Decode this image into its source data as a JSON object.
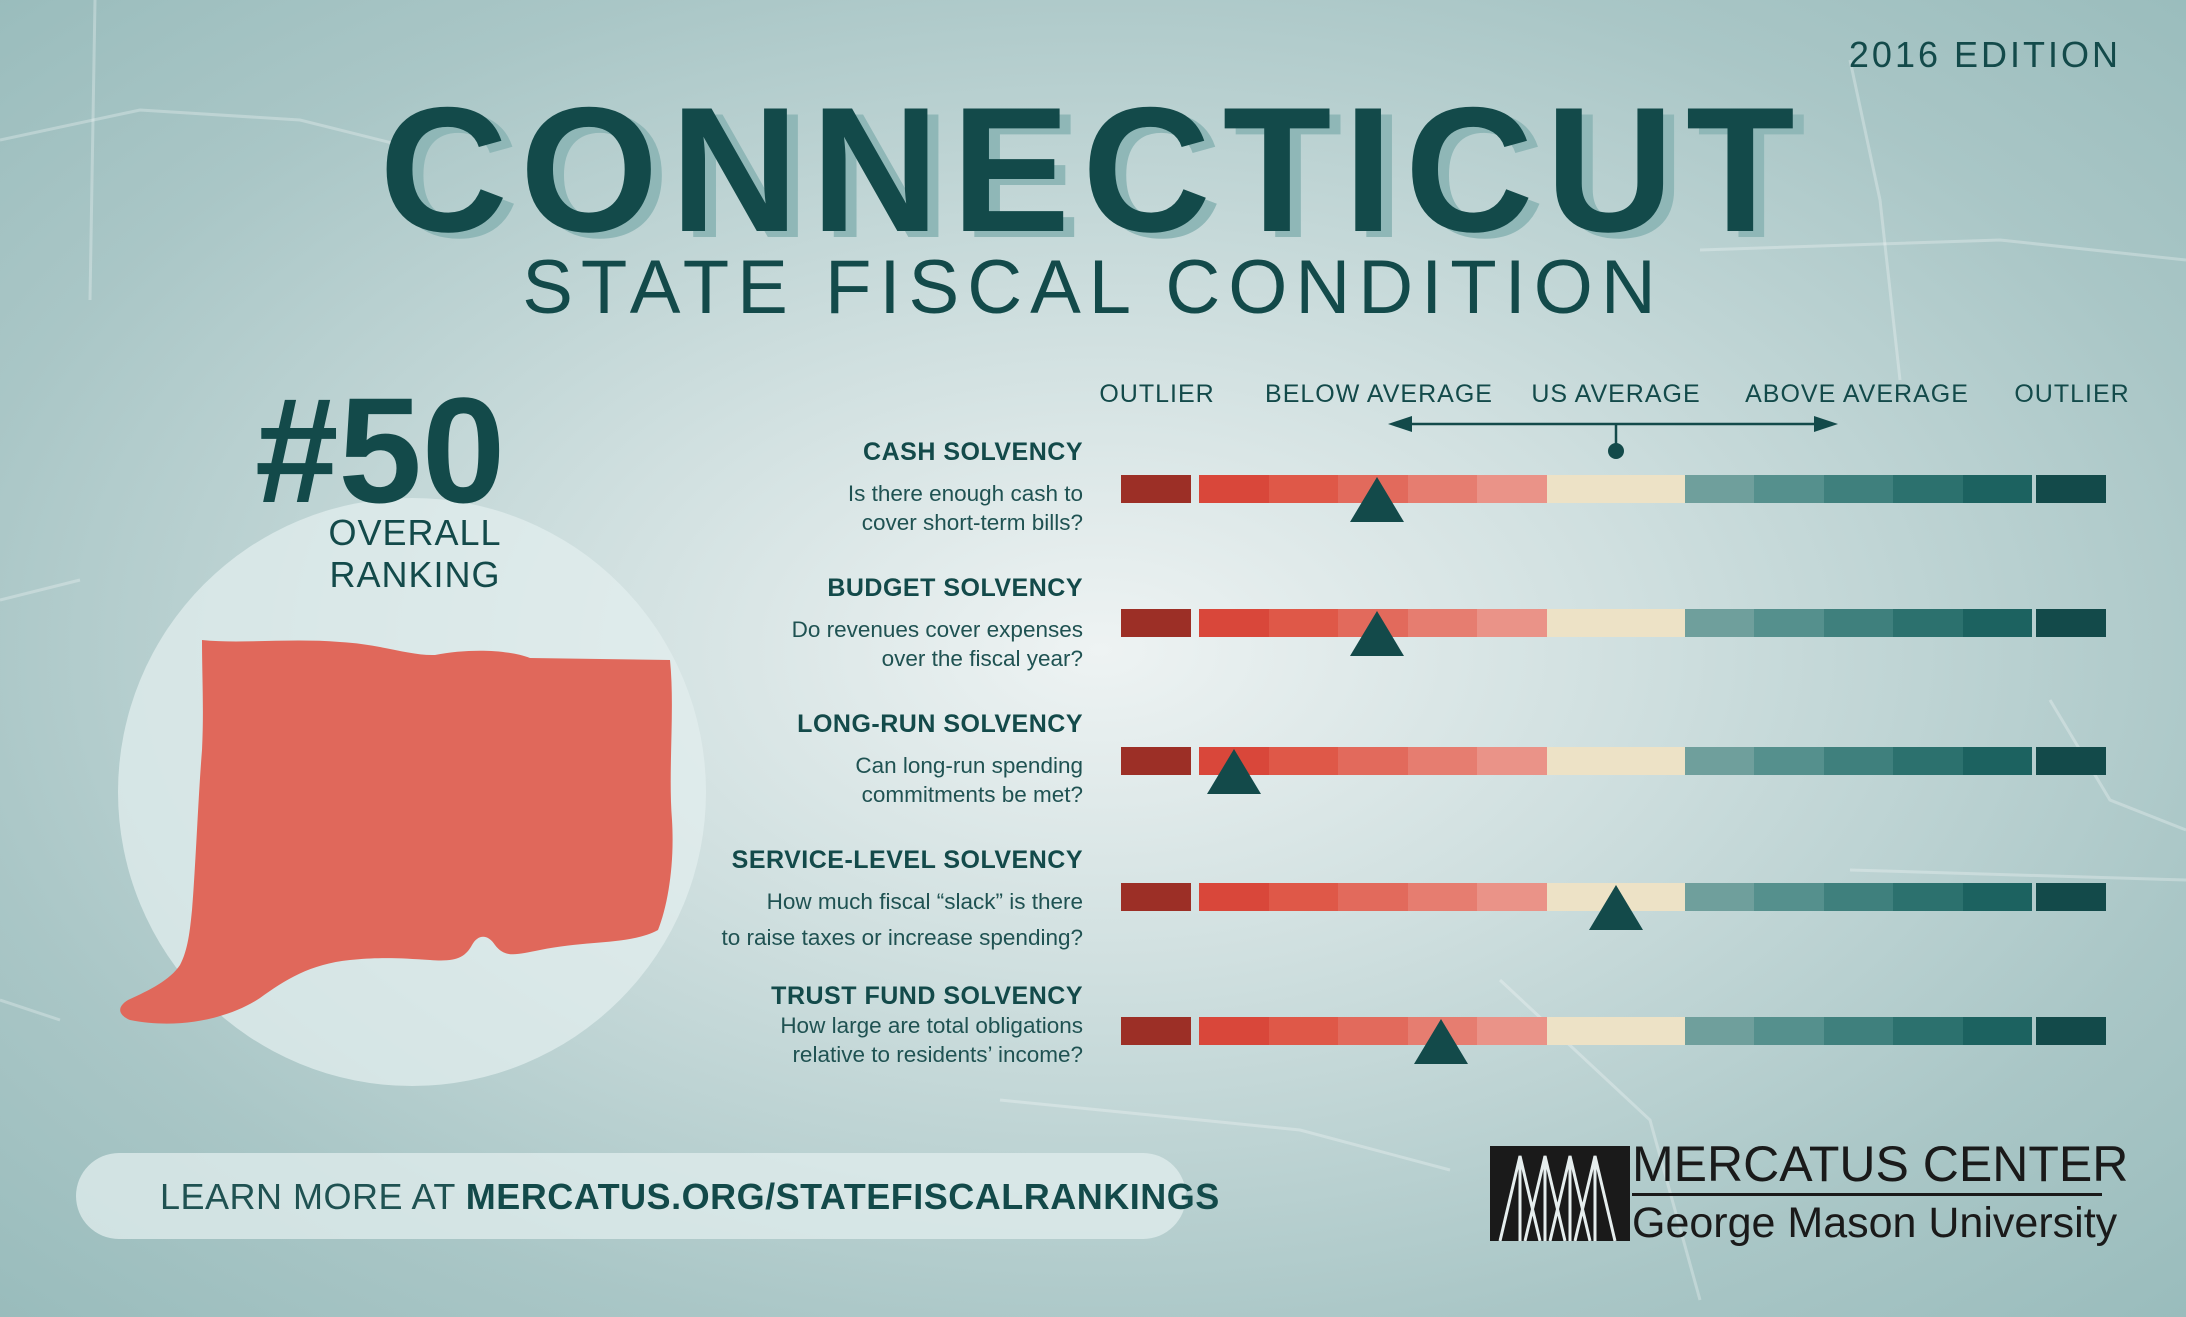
{
  "edition": "2016 EDITION",
  "title": "CONNECTICUT",
  "subtitle": "STATE FISCAL CONDITION",
  "ranking": {
    "number": "#50",
    "label": "OVERALL RANKING"
  },
  "scale": {
    "outlier_left": "OUTLIER",
    "below_average": "BELOW AVERAGE",
    "us_average": "US AVERAGE",
    "above_average": "ABOVE AVERAGE",
    "outlier_right": "OUTLIER"
  },
  "colors": {
    "segments": [
      "#9c2f26",
      "#d9473a",
      "#df5848",
      "#e26a5c",
      "#e67d70",
      "#ea9388",
      "#ede2c6",
      "#ede2c6",
      "#6f9f9c",
      "#55908d",
      "#3f807d",
      "#2c716e",
      "#1c6260",
      "#134a4a"
    ],
    "marker": "#134a4a",
    "state_fill": "#e0685b",
    "text_dark": "#134a4a"
  },
  "metrics": [
    {
      "title": "CASH SOLVENCY",
      "question_line1": "Is there enough cash to",
      "question_line2": "cover short-term bills?",
      "marker_position": 0.26
    },
    {
      "title": "BUDGET SOLVENCY",
      "question_line1": "Do revenues cover expenses",
      "question_line2": "over the fiscal year?",
      "marker_position": 0.26
    },
    {
      "title": "LONG-RUN SOLVENCY",
      "question_line1": "Can long-run spending",
      "question_line2": "commitments be met?",
      "marker_position": 0.115
    },
    {
      "title": "SERVICE-LEVEL SOLVENCY",
      "question_line1": "How much fiscal “slack” is there",
      "question_line2": "to raise taxes or increase spending?",
      "marker_position": 0.503
    },
    {
      "title": "TRUST FUND SOLVENCY",
      "question_line1": "How large are total obligations",
      "question_line2": "relative to residents’ income?",
      "marker_position": 0.325
    }
  ],
  "footer": {
    "learn_prefix": "LEARN MORE AT ",
    "learn_url": "MERCATUS.ORG/STATEFISCALRANKINGS"
  },
  "logo": {
    "name": "MERCATUS CENTER",
    "sub": "George Mason University"
  }
}
